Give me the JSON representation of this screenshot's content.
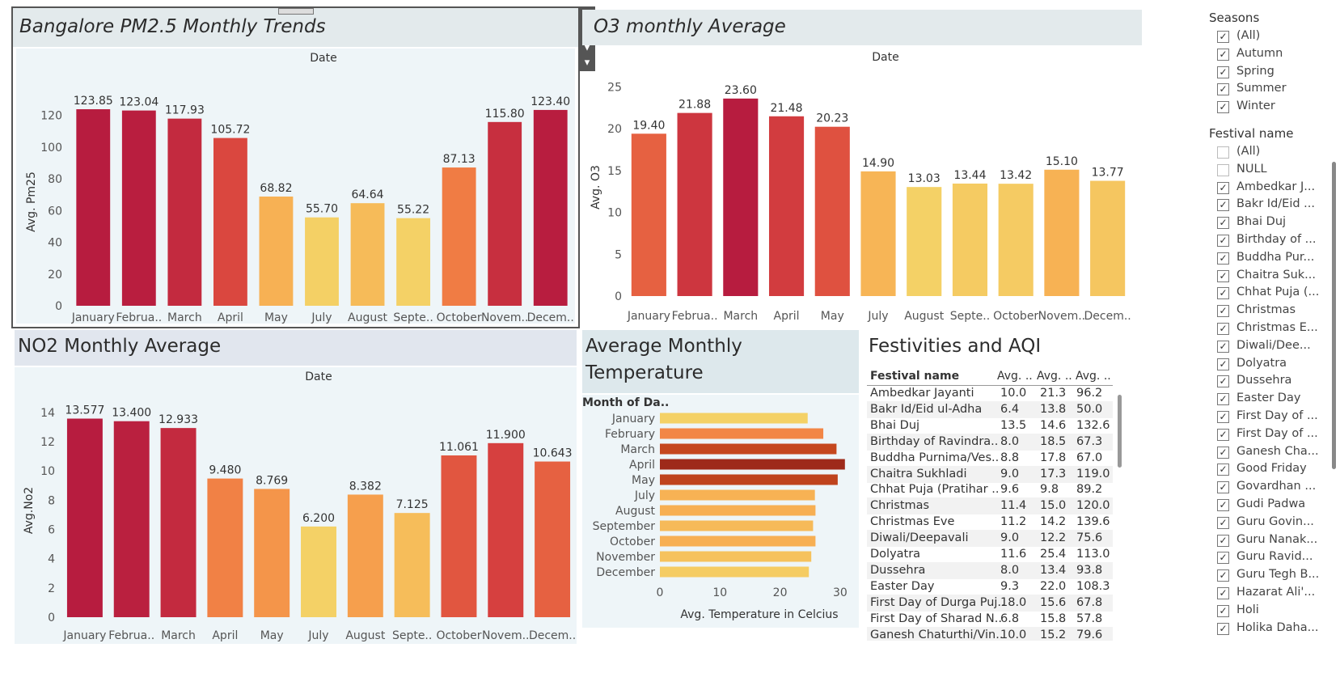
{
  "pm25": {
    "title": "Bangalore PM2.5 Monthly Trends",
    "header": "Date",
    "ylabel": "Avg. Pm25"
  },
  "o3": {
    "title": "O3 monthly Average",
    "header": "Date",
    "ylabel": "Avg. O3"
  },
  "no2": {
    "title": "NO2 Monthly Average",
    "header": "Date",
    "ylabel": "Avg.No2"
  },
  "temp": {
    "title_line1": "Average Monthly",
    "title_line2": "Temperature",
    "row_header": "Month of Da..",
    "xlabel": "Avg. Temperature in Celcius"
  },
  "festivities": {
    "title": "Festivities and AQI",
    "columns": [
      "Festival name",
      "Avg. ..",
      "Avg. ..",
      "Avg. .."
    ],
    "rows": [
      [
        "Ambedkar Jayanti",
        "10.0",
        "21.3",
        "96.2"
      ],
      [
        "Bakr Id/Eid ul-Adha",
        "6.4",
        "13.8",
        "50.0"
      ],
      [
        "Bhai Duj",
        "13.5",
        "14.6",
        "132.6"
      ],
      [
        "Birthday of Ravindra..",
        "8.0",
        "18.5",
        "67.3"
      ],
      [
        "Buddha Purnima/Ves..",
        "8.8",
        "17.8",
        "67.0"
      ],
      [
        "Chaitra Sukhladi",
        "9.0",
        "17.3",
        "119.0"
      ],
      [
        "Chhat Puja (Pratihar ..",
        "9.6",
        "9.8",
        "89.2"
      ],
      [
        "Christmas",
        "11.4",
        "15.0",
        "120.0"
      ],
      [
        "Christmas Eve",
        "11.2",
        "14.2",
        "139.6"
      ],
      [
        "Diwali/Deepavali",
        "9.0",
        "12.2",
        "75.6"
      ],
      [
        "Dolyatra",
        "11.6",
        "25.4",
        "113.0"
      ],
      [
        "Dussehra",
        "8.0",
        "13.4",
        "93.8"
      ],
      [
        "Easter Day",
        "9.3",
        "22.0",
        "108.3"
      ],
      [
        "First Day of Durga Puj..",
        "18.0",
        "15.6",
        "67.8"
      ],
      [
        "First Day of Sharad N..",
        "6.8",
        "15.8",
        "57.8"
      ],
      [
        "Ganesh Chaturthi/Vin..",
        "10.0",
        "15.2",
        "79.6"
      ]
    ]
  },
  "filters": {
    "seasons_title": "Seasons",
    "seasons": [
      {
        "label": "(All)",
        "checked": true
      },
      {
        "label": "Autumn",
        "checked": true
      },
      {
        "label": "Spring",
        "checked": true
      },
      {
        "label": "Summer",
        "checked": true
      },
      {
        "label": "Winter",
        "checked": true
      }
    ],
    "festival_title": "Festival name",
    "festivals": [
      {
        "label": "(All)",
        "checked": false
      },
      {
        "label": "NULL",
        "checked": false
      },
      {
        "label": "Ambedkar J...",
        "checked": true
      },
      {
        "label": "Bakr Id/Eid ...",
        "checked": true
      },
      {
        "label": "Bhai Duj",
        "checked": true
      },
      {
        "label": "Birthday of ...",
        "checked": true
      },
      {
        "label": "Buddha Pur...",
        "checked": true
      },
      {
        "label": "Chaitra Suk...",
        "checked": true
      },
      {
        "label": "Chhat Puja (...",
        "checked": true
      },
      {
        "label": "Christmas",
        "checked": true
      },
      {
        "label": "Christmas E...",
        "checked": true
      },
      {
        "label": "Diwali/Dee...",
        "checked": true
      },
      {
        "label": "Dolyatra",
        "checked": true
      },
      {
        "label": "Dussehra",
        "checked": true
      },
      {
        "label": "Easter Day",
        "checked": true
      },
      {
        "label": "First Day of ...",
        "checked": true
      },
      {
        "label": "First Day of ...",
        "checked": true
      },
      {
        "label": "Ganesh Cha...",
        "checked": true
      },
      {
        "label": "Good Friday",
        "checked": true
      },
      {
        "label": "Govardhan ...",
        "checked": true
      },
      {
        "label": "Gudi Padwa",
        "checked": true
      },
      {
        "label": "Guru Govin...",
        "checked": true
      },
      {
        "label": "Guru Nanak...",
        "checked": true
      },
      {
        "label": "Guru Ravid...",
        "checked": true
      },
      {
        "label": "Guru Tegh B...",
        "checked": true
      },
      {
        "label": "Hazarat Ali'...",
        "checked": true
      },
      {
        "label": "Holi",
        "checked": true
      },
      {
        "label": "Holika Daha...",
        "checked": true
      }
    ]
  },
  "toolbar": {
    "close_glyph": "✕",
    "popout_glyph": "⧉",
    "filter_glyph": "▼",
    "more_glyph": "▾"
  },
  "chart_data": [
    {
      "type": "bar",
      "title": "Bangalore PM2.5 Monthly Trends",
      "xlabel": "Date",
      "ylabel": "Avg. Pm25",
      "categories": [
        "January",
        "Februa..",
        "March",
        "April",
        "May",
        "July",
        "August",
        "Septe..",
        "October",
        "Novem..",
        "Decem.."
      ],
      "values": [
        123.85,
        123.04,
        117.93,
        105.72,
        68.82,
        55.7,
        64.64,
        55.22,
        87.13,
        115.8,
        123.4
      ],
      "value_labels": [
        "123.85",
        "123.04",
        "117.93",
        "105.72",
        "68.82",
        "55.70",
        "64.64",
        "55.22",
        "87.13",
        "115.80",
        "123.40"
      ],
      "yticks": [
        0,
        20,
        40,
        60,
        80,
        100,
        120
      ],
      "ylim": [
        0,
        131
      ],
      "color_range": [
        "#f4d166",
        "#b71c3f"
      ]
    },
    {
      "type": "bar",
      "title": "O3 monthly Average",
      "xlabel": "Date",
      "ylabel": "Avg. O3",
      "categories": [
        "January",
        "Februa..",
        "March",
        "April",
        "May",
        "July",
        "August",
        "Septe..",
        "October",
        "Novem..",
        "Decem.."
      ],
      "values": [
        19.4,
        21.88,
        23.6,
        21.48,
        20.23,
        14.9,
        13.03,
        13.44,
        13.42,
        15.1,
        13.77
      ],
      "value_labels": [
        "19.40",
        "21.88",
        "23.60",
        "21.48",
        "20.23",
        "14.90",
        "13.03",
        "13.44",
        "13.42",
        "15.10",
        "13.77"
      ],
      "yticks": [
        0,
        5,
        10,
        15,
        20,
        25
      ],
      "ylim": [
        0,
        26
      ],
      "color_range": [
        "#f4d166",
        "#b71c3f"
      ]
    },
    {
      "type": "bar",
      "title": "NO2 Monthly Average",
      "xlabel": "Date",
      "ylabel": "Avg.No2",
      "categories": [
        "January",
        "Februa..",
        "March",
        "April",
        "May",
        "July",
        "August",
        "Septe..",
        "October",
        "Novem..",
        "Decem.."
      ],
      "values": [
        13.577,
        13.4,
        12.933,
        9.48,
        8.769,
        6.2,
        8.382,
        7.125,
        11.061,
        11.9,
        10.643
      ],
      "value_labels": [
        "13.577",
        "13.400",
        "12.933",
        "9.480",
        "8.769",
        "6.200",
        "8.382",
        "7.125",
        "11.061",
        "11.900",
        "10.643"
      ],
      "yticks": [
        0,
        2,
        4,
        6,
        8,
        10,
        12,
        14
      ],
      "ylim": [
        0,
        14.6
      ],
      "color_range": [
        "#f4d166",
        "#b71c3f"
      ]
    },
    {
      "type": "bar",
      "orientation": "horizontal",
      "title": "Average Monthly Temperature",
      "ylabel": "Month of Da..",
      "xlabel": "Avg. Temperature in Celcius",
      "categories": [
        "January",
        "February",
        "March",
        "April",
        "May",
        "July",
        "August",
        "September",
        "October",
        "November",
        "December"
      ],
      "values": [
        24.6,
        27.2,
        29.4,
        30.8,
        29.6,
        25.8,
        25.9,
        25.5,
        25.9,
        25.2,
        24.8
      ],
      "xticks": [
        0,
        10,
        20,
        30
      ],
      "xlim": [
        0,
        31.5
      ],
      "color_range": [
        "#f4d166",
        "#9e2a1a"
      ]
    }
  ]
}
